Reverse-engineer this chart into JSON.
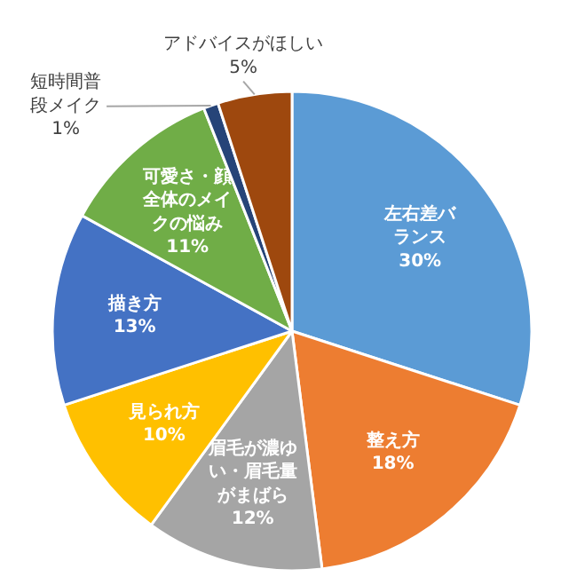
{
  "chart_data": {
    "type": "pie",
    "categories": [
      "左右差バランス",
      "整え方",
      "眉毛が濃ゆい・眉毛量がまばら",
      "見られ方",
      "描き方",
      "可愛さ・顔全体のメイクの悩み",
      "短時間普段メイク",
      "アドバイスがほしい"
    ],
    "values": [
      30,
      18,
      12,
      10,
      13,
      11,
      1,
      5
    ],
    "value_labels": [
      "30%",
      "18%",
      "12%",
      "10%",
      "13%",
      "11%",
      "1%",
      "5%"
    ],
    "colors": [
      "#5b9bd5",
      "#ed7d31",
      "#a5a5a5",
      "#ffc000",
      "#4472c4",
      "#70ad47",
      "#264478",
      "#9e480e"
    ]
  }
}
